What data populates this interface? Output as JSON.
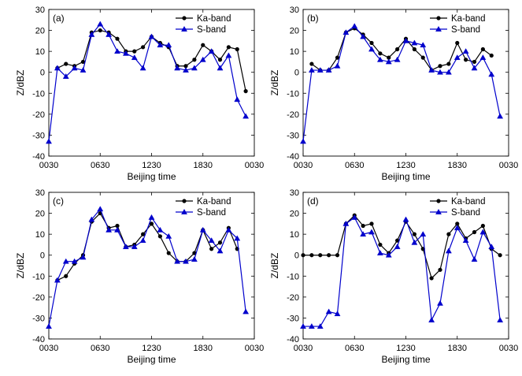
{
  "chart_data": [
    {
      "type": "line",
      "panel_label": "(a)",
      "xlabel": "Beijing time",
      "ylabel": "Z/dBZ",
      "xlim": [
        0,
        48
      ],
      "ylim": [
        -40,
        30
      ],
      "x_ticks": [
        0,
        12,
        24,
        36,
        48
      ],
      "x_tick_labels": [
        "0030",
        "0630",
        "1230",
        "1830",
        "0030"
      ],
      "y_ticks": [
        -40,
        -30,
        -20,
        -10,
        0,
        10,
        20,
        30
      ],
      "y_tick_labels": [
        "-40",
        "-30",
        "-20",
        "-10",
        "0",
        "10",
        "20",
        "30"
      ],
      "legend_position": "top-right",
      "grid": false,
      "series": [
        {
          "name": "Ka-band",
          "color": "#000000",
          "marker": "circle",
          "x": [
            2,
            4,
            6,
            8,
            10,
            12,
            14,
            16,
            18,
            20,
            22,
            24,
            26,
            28,
            30,
            32,
            34,
            36,
            38,
            40,
            42,
            44,
            46
          ],
          "y": [
            2,
            4,
            3,
            5,
            19,
            20,
            19,
            16,
            10,
            10,
            12,
            17,
            14,
            12,
            3,
            3,
            6,
            13,
            10,
            6,
            12,
            11,
            -9
          ]
        },
        {
          "name": "S-band",
          "color": "#0000cc",
          "marker": "triangle",
          "x": [
            0,
            2,
            4,
            6,
            8,
            10,
            12,
            14,
            16,
            18,
            20,
            22,
            24,
            26,
            28,
            30,
            32,
            34,
            36,
            38,
            40,
            42,
            44,
            46
          ],
          "y": [
            -33,
            2,
            -2,
            2,
            1,
            18,
            23,
            18,
            10,
            9,
            7,
            2,
            17,
            13,
            13,
            2,
            1,
            2,
            6,
            10,
            2,
            8,
            -13,
            -21
          ]
        }
      ]
    },
    {
      "type": "line",
      "panel_label": "(b)",
      "xlabel": "Beijing time",
      "ylabel": "Z/dBZ",
      "xlim": [
        0,
        48
      ],
      "ylim": [
        -40,
        30
      ],
      "x_ticks": [
        0,
        12,
        24,
        36,
        48
      ],
      "x_tick_labels": [
        "0030",
        "0630",
        "1230",
        "1830",
        "0030"
      ],
      "y_ticks": [
        -40,
        -30,
        -20,
        -10,
        0,
        10,
        20,
        30
      ],
      "y_tick_labels": [
        "-40",
        "-30",
        "-20",
        "-10",
        "0",
        "10",
        "20",
        "30"
      ],
      "legend_position": "top-right",
      "grid": false,
      "series": [
        {
          "name": "Ka-band",
          "color": "#000000",
          "marker": "circle",
          "x": [
            2,
            4,
            6,
            8,
            10,
            12,
            14,
            16,
            18,
            20,
            22,
            24,
            26,
            28,
            30,
            32,
            34,
            36,
            38,
            40,
            42,
            44
          ],
          "y": [
            4,
            1,
            1,
            7,
            19,
            21,
            18,
            14,
            9,
            7,
            11,
            16,
            11,
            7,
            1,
            3,
            4,
            14,
            6,
            5,
            11,
            8
          ]
        },
        {
          "name": "S-band",
          "color": "#0000cc",
          "marker": "triangle",
          "x": [
            0,
            2,
            4,
            6,
            8,
            10,
            12,
            14,
            16,
            18,
            20,
            22,
            24,
            26,
            28,
            30,
            32,
            34,
            36,
            38,
            40,
            42,
            44,
            46
          ],
          "y": [
            -33,
            1,
            1,
            1,
            3,
            19,
            22,
            17,
            11,
            6,
            5,
            6,
            15,
            14,
            13,
            1,
            0,
            0,
            7,
            10,
            2,
            7,
            -1,
            -21
          ]
        }
      ]
    },
    {
      "type": "line",
      "panel_label": "(c)",
      "xlabel": "Beijing time",
      "ylabel": "Z/dBZ",
      "xlim": [
        0,
        48
      ],
      "ylim": [
        -40,
        30
      ],
      "x_ticks": [
        0,
        12,
        24,
        36,
        48
      ],
      "x_tick_labels": [
        "0030",
        "0630",
        "1230",
        "1830",
        "0030"
      ],
      "y_ticks": [
        -40,
        -30,
        -20,
        -10,
        0,
        10,
        20,
        30
      ],
      "y_tick_labels": [
        "-40",
        "-30",
        "-20",
        "-10",
        "0",
        "10",
        "20",
        "30"
      ],
      "legend_position": "top-right",
      "grid": false,
      "series": [
        {
          "name": "Ka-band",
          "color": "#000000",
          "marker": "circle",
          "x": [
            2,
            4,
            6,
            8,
            10,
            12,
            14,
            16,
            18,
            20,
            22,
            24,
            26,
            28,
            30,
            32,
            34,
            36,
            38,
            40,
            42,
            44
          ],
          "y": [
            -12,
            -10,
            -4,
            0,
            16,
            20,
            13,
            14,
            4,
            5,
            10,
            15,
            9,
            1,
            -3,
            -3,
            1,
            12,
            3,
            6,
            13,
            3
          ]
        },
        {
          "name": "S-band",
          "color": "#0000cc",
          "marker": "triangle",
          "x": [
            0,
            2,
            4,
            6,
            8,
            10,
            12,
            14,
            16,
            18,
            20,
            22,
            24,
            26,
            28,
            30,
            32,
            34,
            36,
            38,
            40,
            42,
            44,
            46
          ],
          "y": [
            -34,
            -12,
            -3,
            -3,
            -1,
            17,
            22,
            12,
            12,
            4,
            4,
            7,
            18,
            12,
            9,
            -3,
            -3,
            -2,
            12,
            7,
            2,
            12,
            8,
            -27
          ]
        }
      ]
    },
    {
      "type": "line",
      "panel_label": "(d)",
      "xlabel": "Beijing time",
      "ylabel": "Z/dBZ",
      "xlim": [
        0,
        48
      ],
      "ylim": [
        -40,
        30
      ],
      "x_ticks": [
        0,
        12,
        24,
        36,
        48
      ],
      "x_tick_labels": [
        "0030",
        "0630",
        "1230",
        "1830",
        "0030"
      ],
      "y_ticks": [
        -40,
        -30,
        -20,
        -10,
        0,
        10,
        20,
        30
      ],
      "y_tick_labels": [
        "-40",
        "-30",
        "-20",
        "-10",
        "0",
        "10",
        "20",
        "30"
      ],
      "legend_position": "top-right",
      "grid": false,
      "series": [
        {
          "name": "Ka-band",
          "color": "#000000",
          "marker": "circle",
          "x": [
            0,
            2,
            4,
            6,
            8,
            10,
            12,
            14,
            16,
            18,
            20,
            22,
            24,
            26,
            28,
            30,
            32,
            34,
            36,
            38,
            40,
            42,
            44,
            46
          ],
          "y": [
            0,
            0,
            0,
            0,
            0,
            15,
            19,
            14,
            15,
            5,
            1,
            7,
            16,
            10,
            3,
            -11,
            -7,
            10,
            15,
            8,
            11,
            14,
            3,
            0
          ]
        },
        {
          "name": "S-band",
          "color": "#0000cc",
          "marker": "triangle",
          "x": [
            0,
            2,
            4,
            6,
            8,
            10,
            12,
            14,
            16,
            18,
            20,
            22,
            24,
            26,
            28,
            30,
            32,
            34,
            36,
            38,
            40,
            42,
            44,
            46
          ],
          "y": [
            -34,
            -34,
            -34,
            -27,
            -28,
            15,
            18,
            10,
            11,
            1,
            0,
            4,
            17,
            6,
            10,
            -31,
            -23,
            2,
            13,
            7,
            -2,
            11,
            4,
            -31
          ]
        }
      ]
    }
  ]
}
